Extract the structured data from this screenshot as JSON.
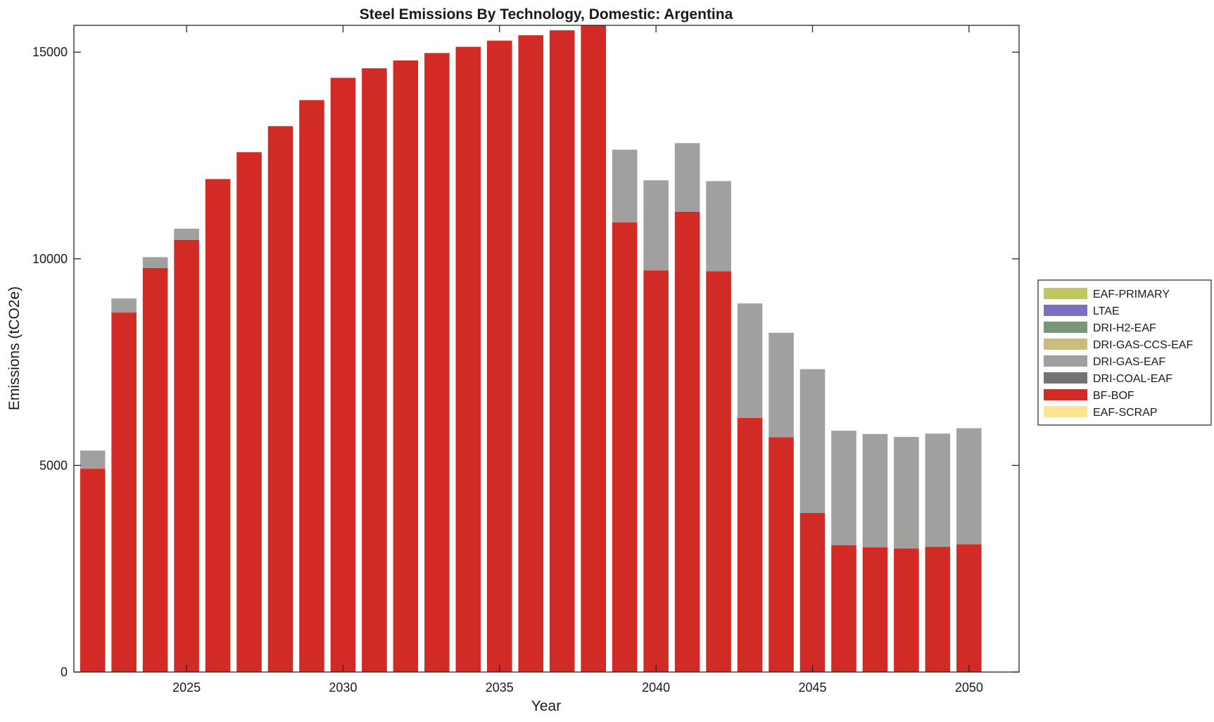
{
  "chart_data": {
    "type": "bar",
    "stacked": true,
    "title": "Steel Emissions By Technology, Domestic: Argentina",
    "xlabel": "Year",
    "ylabel": "Emissions (tCO2e)",
    "xlim": [
      2021.4,
      2051.6
    ],
    "ylim": [
      0,
      15650
    ],
    "x_ticks": [
      2025,
      2030,
      2035,
      2040,
      2045,
      2050
    ],
    "y_ticks": [
      0,
      5000,
      10000,
      15000
    ],
    "grid": false,
    "legend_position": "right",
    "x": [
      2022,
      2023,
      2024,
      2025,
      2026,
      2027,
      2028,
      2029,
      2030,
      2031,
      2032,
      2033,
      2034,
      2035,
      2036,
      2037,
      2038,
      2039,
      2040,
      2041,
      2042,
      2043,
      2044,
      2045,
      2046,
      2047,
      2048,
      2049,
      2050
    ],
    "series": [
      {
        "name": "EAF-PRIMARY",
        "color": "#bfc85f",
        "values": [
          0,
          0,
          0,
          0,
          0,
          0,
          0,
          0,
          0,
          0,
          0,
          0,
          0,
          0,
          0,
          0,
          0,
          0,
          0,
          0,
          0,
          0,
          0,
          0,
          0,
          0,
          0,
          0,
          0
        ]
      },
      {
        "name": "LTAE",
        "color": "#7b6fc1",
        "values": [
          0,
          0,
          0,
          0,
          0,
          0,
          0,
          0,
          0,
          0,
          0,
          0,
          0,
          0,
          0,
          0,
          0,
          0,
          0,
          0,
          0,
          0,
          0,
          0,
          0,
          0,
          0,
          0,
          0
        ]
      },
      {
        "name": "DRI-H2-EAF",
        "color": "#78977a",
        "values": [
          0,
          0,
          0,
          0,
          0,
          0,
          0,
          0,
          0,
          0,
          0,
          0,
          0,
          0,
          0,
          0,
          0,
          0,
          0,
          0,
          0,
          0,
          0,
          0,
          0,
          0,
          0,
          0,
          0
        ]
      },
      {
        "name": "DRI-GAS-CCS-EAF",
        "color": "#c9bc7d",
        "values": [
          0,
          0,
          0,
          0,
          0,
          0,
          0,
          0,
          0,
          0,
          0,
          0,
          0,
          0,
          0,
          0,
          0,
          0,
          0,
          0,
          0,
          0,
          0,
          0,
          0,
          0,
          0,
          0,
          0
        ]
      },
      {
        "name": "DRI-GAS-EAF",
        "color": "#a0a09f",
        "values": [
          440,
          340,
          260,
          270,
          0,
          0,
          0,
          0,
          0,
          0,
          0,
          0,
          0,
          0,
          0,
          0,
          0,
          1760,
          2180,
          1660,
          2180,
          2770,
          2530,
          3480,
          2770,
          2740,
          2700,
          2740,
          2810
        ]
      },
      {
        "name": "DRI-COAL-EAF",
        "color": "#737373",
        "values": [
          0,
          0,
          0,
          0,
          0,
          0,
          0,
          0,
          0,
          0,
          0,
          0,
          0,
          0,
          0,
          0,
          0,
          0,
          0,
          0,
          0,
          0,
          0,
          0,
          0,
          0,
          0,
          0,
          0
        ]
      },
      {
        "name": "BF-BOF",
        "color": "#d22b26",
        "values": [
          4920,
          8700,
          9780,
          10460,
          11930,
          12580,
          13210,
          13840,
          14380,
          14610,
          14800,
          14980,
          15130,
          15280,
          15410,
          15530,
          15650,
          10880,
          9720,
          11140,
          9700,
          6150,
          5680,
          3850,
          3070,
          3020,
          2990,
          3030,
          3090
        ]
      },
      {
        "name": "EAF-SCRAP",
        "color": "#fee490",
        "values": [
          0,
          0,
          0,
          0,
          0,
          0,
          0,
          0,
          0,
          0,
          0,
          0,
          0,
          0,
          0,
          0,
          0,
          0,
          0,
          0,
          0,
          0,
          0,
          0,
          0,
          0,
          0,
          0,
          0
        ]
      }
    ],
    "stack_order": [
      "BF-BOF",
      "DRI-GAS-EAF"
    ]
  }
}
